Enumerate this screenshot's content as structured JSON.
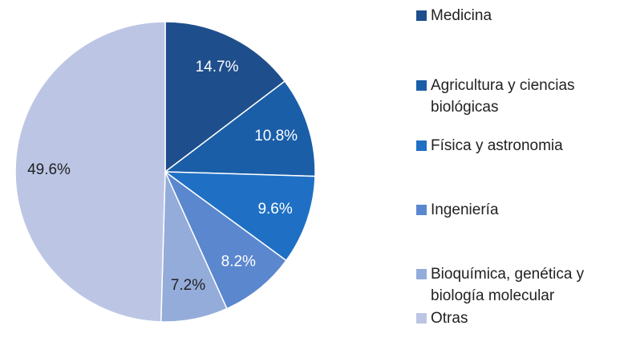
{
  "chart_data": {
    "type": "pie",
    "categories": [
      "Medicina",
      "Agricultura y ciencias biológicas",
      "Física y astronomia",
      "Ingeniería",
      "Bioquímica, genética y biología molecular",
      "Otras"
    ],
    "values": [
      14.7,
      10.8,
      9.6,
      8.2,
      7.2,
      49.6
    ],
    "value_labels": [
      "14.7%",
      "10.8%",
      "9.6%",
      "8.2%",
      "7.2%",
      "49.6%"
    ],
    "colors": [
      "#1f4e8c",
      "#1a5ea8",
      "#1f70c4",
      "#5b87cf",
      "#94acda",
      "#bcc6e4"
    ],
    "legend": "right"
  }
}
